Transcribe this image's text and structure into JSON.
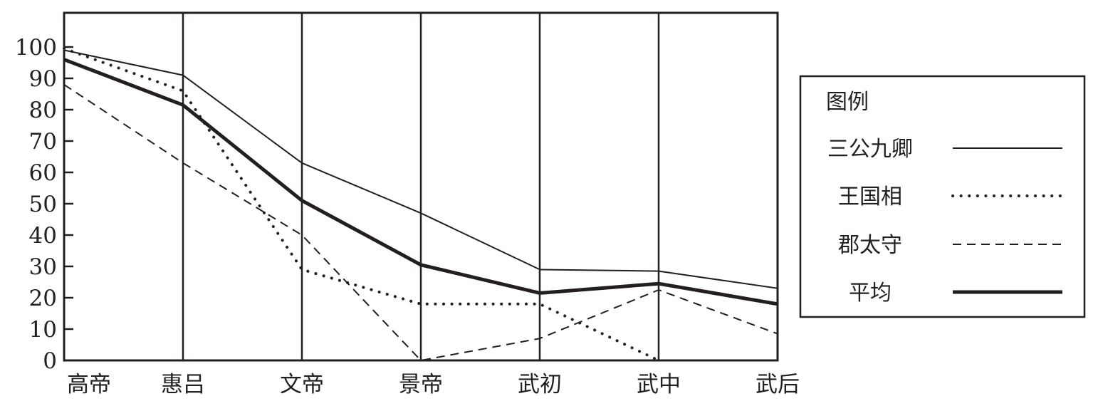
{
  "chart_data": {
    "type": "line",
    "categories": [
      "高帝",
      "惠吕",
      "文帝",
      "景帝",
      "武初",
      "武中",
      "武后"
    ],
    "ylim": [
      0,
      100
    ],
    "yticks": [
      0,
      10,
      20,
      30,
      40,
      50,
      60,
      70,
      80,
      90,
      100
    ],
    "grid": "vertical lines at each category",
    "legend": {
      "title": "图例",
      "placement": "right"
    },
    "series": [
      {
        "name": "三公九卿",
        "style": "thin-solid",
        "values": [
          99,
          91,
          63,
          47,
          29,
          28.5,
          23
        ]
      },
      {
        "name": "王国相",
        "style": "dotted",
        "values": [
          99.5,
          86,
          29,
          18,
          18,
          0,
          null
        ]
      },
      {
        "name": "郡太守",
        "style": "dashed",
        "values": [
          88,
          63,
          40,
          0,
          7,
          22.5,
          8.5
        ]
      },
      {
        "name": "平均",
        "style": "thick-solid",
        "values": [
          96,
          81.5,
          51,
          30.5,
          21.5,
          24.5,
          18
        ]
      }
    ],
    "colors": {
      "ink": "#231f20"
    }
  }
}
